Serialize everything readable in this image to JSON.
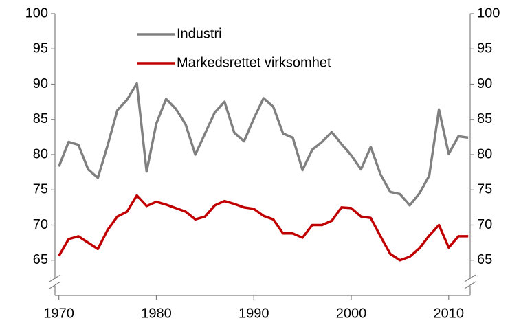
{
  "chart_data": {
    "type": "line",
    "x": [
      1970,
      1971,
      1972,
      1973,
      1974,
      1975,
      1976,
      1977,
      1978,
      1979,
      1980,
      1981,
      1982,
      1983,
      1984,
      1985,
      1986,
      1987,
      1988,
      1989,
      1990,
      1991,
      1992,
      1993,
      1994,
      1995,
      1996,
      1997,
      1998,
      1999,
      2000,
      2001,
      2002,
      2003,
      2004,
      2005,
      2006,
      2007,
      2008,
      2009,
      2010,
      2011,
      2012
    ],
    "series": [
      {
        "name": "Industri",
        "color": "#808080",
        "values": [
          78.3,
          81.8,
          81.4,
          77.9,
          76.7,
          81.3,
          86.3,
          87.8,
          90.1,
          77.6,
          84.4,
          87.9,
          86.5,
          84.3,
          80.0,
          83.0,
          86.0,
          87.5,
          83.1,
          81.9,
          85.1,
          88.0,
          86.8,
          83.0,
          82.4,
          77.8,
          80.7,
          81.8,
          83.2,
          81.5,
          79.9,
          77.9,
          81.1,
          77.2,
          74.7,
          74.4,
          72.8,
          74.5,
          77.0,
          86.4,
          80.1,
          82.6,
          82.4
        ]
      },
      {
        "name": "Markedsrettet virksomhet",
        "color": "#c00000",
        "values": [
          65.6,
          68.0,
          68.4,
          67.5,
          66.6,
          69.3,
          71.2,
          71.9,
          74.2,
          72.7,
          73.3,
          72.9,
          72.4,
          71.9,
          70.8,
          71.2,
          72.8,
          73.4,
          73.0,
          72.5,
          72.3,
          71.3,
          70.8,
          68.8,
          68.8,
          68.2,
          70.0,
          70.0,
          70.6,
          72.5,
          72.4,
          71.2,
          71.0,
          68.4,
          65.9,
          65.0,
          65.5,
          66.7,
          68.5,
          70.0,
          66.8,
          68.4,
          68.4
        ]
      }
    ],
    "xlim": [
      1969.6,
      2012.2
    ],
    "xticks": [
      1970,
      1980,
      1990,
      2000,
      2010
    ],
    "ylim": [
      60,
      100
    ],
    "yticks": [
      65,
      70,
      75,
      80,
      85,
      90,
      95,
      100
    ],
    "y2lim": [
      60,
      100
    ],
    "y2ticks": [
      65,
      70,
      75,
      80,
      85,
      90,
      95,
      100
    ],
    "legend": "upper left"
  }
}
